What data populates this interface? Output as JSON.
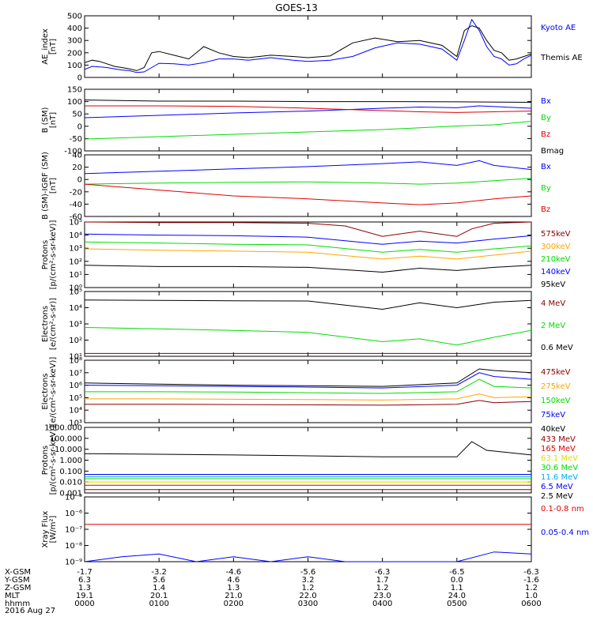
{
  "title": "GOES-13",
  "chart_data": [
    {
      "type": "line",
      "ylabel": [
        "AE_index",
        "[nT]"
      ],
      "ylim": [
        0,
        500
      ],
      "yticks": [
        "0",
        "100",
        "200",
        "300",
        "400",
        "500"
      ],
      "yscale": "linear",
      "series": [
        {
          "name": "Kyoto AE",
          "color": "#0000ff",
          "x": [
            0,
            0.1,
            0.2,
            0.3,
            0.4,
            0.5,
            0.6,
            0.7,
            0.8,
            0.9,
            1.0,
            1.2,
            1.4,
            1.6,
            1.8,
            2.0,
            2.2,
            2.5,
            2.8,
            3.0,
            3.3,
            3.6,
            3.9,
            4.2,
            4.5,
            4.8,
            5.0,
            5.1,
            5.2,
            5.3,
            5.4,
            5.5,
            5.6,
            5.7,
            5.8,
            5.9,
            6.0
          ],
          "values": [
            65,
            90,
            85,
            80,
            70,
            60,
            55,
            40,
            45,
            80,
            115,
            110,
            100,
            120,
            150,
            150,
            140,
            160,
            140,
            130,
            140,
            170,
            240,
            280,
            270,
            230,
            140,
            300,
            470,
            380,
            250,
            170,
            150,
            100,
            110,
            150,
            180
          ]
        },
        {
          "name": "Themis AE",
          "color": "#000000",
          "x": [
            0,
            0.1,
            0.2,
            0.3,
            0.4,
            0.5,
            0.6,
            0.7,
            0.8,
            0.9,
            1.0,
            1.2,
            1.4,
            1.6,
            1.8,
            2.0,
            2.2,
            2.5,
            2.8,
            3.0,
            3.3,
            3.6,
            3.9,
            4.2,
            4.5,
            4.8,
            5.0,
            5.1,
            5.2,
            5.3,
            5.4,
            5.5,
            5.6,
            5.7,
            5.8,
            5.9,
            6.0
          ],
          "values": [
            120,
            140,
            130,
            110,
            90,
            80,
            70,
            55,
            80,
            200,
            210,
            180,
            150,
            250,
            200,
            170,
            160,
            180,
            170,
            160,
            175,
            280,
            320,
            290,
            300,
            260,
            170,
            380,
            420,
            400,
            300,
            220,
            200,
            140,
            150,
            170,
            190
          ]
        }
      ]
    },
    {
      "type": "line",
      "ylabel": [
        "B (SM)",
        "[nT]"
      ],
      "ylim": [
        -110,
        150
      ],
      "yticks": [
        "-100",
        "-50",
        "0",
        "50",
        "100",
        "150"
      ],
      "yscale": "linear",
      "series": [
        {
          "name": "Bx",
          "color": "#0000ff",
          "x": [
            0,
            1,
            2,
            3,
            4,
            4.5,
            5,
            5.3,
            6
          ],
          "values": [
            30,
            40,
            50,
            58,
            70,
            75,
            72,
            80,
            70
          ]
        },
        {
          "name": "By",
          "color": "#00dd00",
          "x": [
            0,
            1,
            2,
            3,
            4,
            5,
            5.5,
            6
          ],
          "values": [
            -60,
            -50,
            -40,
            -30,
            -20,
            -5,
            0,
            15
          ]
        },
        {
          "name": "Bz",
          "color": "#dd0000",
          "x": [
            0,
            1,
            2,
            3,
            4,
            4.5,
            5,
            5.5,
            6
          ],
          "values": [
            80,
            80,
            78,
            70,
            60,
            55,
            52,
            55,
            58
          ]
        },
        {
          "name": "Bmag",
          "color": "#000000",
          "x": [
            0,
            1,
            2,
            3,
            4,
            5,
            6
          ],
          "values": [
            105,
            100,
            100,
            98,
            98,
            97,
            95
          ]
        }
      ]
    },
    {
      "type": "line",
      "ylabel": [
        "B (SM)-IGRF (SM)",
        "[nT]"
      ],
      "ylim": [
        -65,
        40
      ],
      "yticks": [
        "-60",
        "-40",
        "-20",
        "0",
        "20",
        "40"
      ],
      "yscale": "linear",
      "series": [
        {
          "name": "Bx",
          "color": "#0000ff",
          "x": [
            0,
            1,
            2,
            3,
            4,
            4.5,
            5,
            5.3,
            5.5,
            6
          ],
          "values": [
            8,
            12,
            16,
            20,
            25,
            28,
            22,
            30,
            22,
            15
          ]
        },
        {
          "name": "By",
          "color": "#00dd00",
          "x": [
            0,
            1,
            2,
            3,
            4,
            4.5,
            5,
            5.5,
            6
          ],
          "values": [
            -10,
            -8,
            -7,
            -6,
            -8,
            -10,
            -8,
            -4,
            0
          ]
        },
        {
          "name": "Bz",
          "color": "#dd0000",
          "x": [
            0,
            0.5,
            1,
            1.5,
            2,
            3,
            4,
            4.5,
            5,
            5.5,
            6
          ],
          "values": [
            -10,
            -15,
            -20,
            -25,
            -30,
            -35,
            -42,
            -45,
            -42,
            -35,
            -30
          ]
        }
      ]
    },
    {
      "type": "line",
      "ylabel": [
        "Protons",
        "[p/(cm²-s-sr-keV)]"
      ],
      "ylim": [
        1,
        100000
      ],
      "yticks": [
        "10⁰",
        "10¹",
        "10²",
        "10³",
        "10⁴",
        "10⁵"
      ],
      "yscale": "log",
      "series": [
        {
          "name": "575keV",
          "color": "#8b0000",
          "x": [
            0,
            1,
            2,
            3,
            3.5,
            4,
            4.5,
            5,
            5.2,
            5.5,
            6
          ],
          "values": [
            100000,
            90000,
            90000,
            80000,
            50000,
            8000,
            20000,
            8000,
            30000,
            80000,
            100000
          ]
        },
        {
          "name": "300keV",
          "color": "#ffa500",
          "x": [
            0,
            1,
            2,
            3,
            4,
            4.5,
            5,
            5.5,
            6
          ],
          "values": [
            900,
            700,
            600,
            500,
            150,
            250,
            150,
            300,
            600
          ]
        },
        {
          "name": "210keV",
          "color": "#00dd00",
          "x": [
            0,
            1,
            2,
            3,
            4,
            4.5,
            5,
            5.5,
            6
          ],
          "values": [
            3000,
            2500,
            2000,
            1800,
            500,
            800,
            500,
            900,
            1500
          ]
        },
        {
          "name": "140keV",
          "color": "#0000ff",
          "x": [
            0,
            1,
            2,
            3,
            4,
            4.5,
            5,
            5.5,
            6
          ],
          "values": [
            12000,
            10000,
            9000,
            7000,
            2000,
            3500,
            2500,
            5000,
            9000
          ]
        },
        {
          "name": "95keV",
          "color": "#000000",
          "x": [
            0,
            1,
            2,
            3,
            4,
            4.5,
            5,
            5.5,
            6
          ],
          "values": [
            50,
            40,
            40,
            35,
            15,
            30,
            20,
            35,
            50
          ]
        }
      ]
    },
    {
      "type": "line",
      "ylabel": [
        "Electrons",
        "[e/(cm²-s-sr)]"
      ],
      "ylim": [
        10,
        100000
      ],
      "yticks": [
        "10¹",
        "10²",
        "10³",
        "10⁴",
        "10⁵"
      ],
      "yscale": "log",
      "series": [
        {
          "name": "4 MeV",
          "color": "#8b0000",
          "x": [
            0,
            1,
            2,
            3,
            4,
            5,
            6
          ],
          "values": [
            15,
            15,
            15,
            15,
            15,
            15,
            15
          ]
        },
        {
          "name": "2 MeV",
          "color": "#00dd00",
          "x": [
            0,
            1,
            2,
            3,
            4,
            4.5,
            5,
            5.5,
            6
          ],
          "values": [
            600,
            500,
            400,
            300,
            80,
            120,
            50,
            150,
            400
          ]
        },
        {
          "name": "0.6 MeV",
          "color": "#000000",
          "x": [
            0,
            1,
            2,
            3,
            4,
            4.5,
            5,
            5.5,
            6
          ],
          "values": [
            30000,
            28000,
            27000,
            26000,
            8000,
            20000,
            10000,
            22000,
            28000
          ]
        }
      ]
    },
    {
      "type": "line",
      "ylabel": [
        "Electrons",
        "[e/(cm²-s-sr-keV)]"
      ],
      "ylim": [
        1000,
        100000000
      ],
      "yticks": [
        "10³",
        "10⁴",
        "10⁵",
        "10⁶",
        "10⁷",
        "10⁸"
      ],
      "yscale": "log",
      "series": [
        {
          "name": "475keV",
          "color": "#8b0000",
          "x": [
            0,
            1,
            2,
            3,
            4,
            5,
            5.3,
            5.5,
            6
          ],
          "values": [
            30000,
            30000,
            28000,
            27000,
            25000,
            30000,
            60000,
            40000,
            50000
          ]
        },
        {
          "name": "275keV",
          "color": "#ffa500",
          "x": [
            0,
            1,
            2,
            3,
            4,
            5,
            5.3,
            5.5,
            6
          ],
          "values": [
            80000,
            80000,
            75000,
            70000,
            65000,
            80000,
            200000,
            100000,
            120000
          ]
        },
        {
          "name": "150keV",
          "color": "#00dd00",
          "x": [
            0,
            1,
            2,
            3,
            4,
            5,
            5.3,
            5.5,
            6
          ],
          "values": [
            300000,
            300000,
            280000,
            250000,
            220000,
            300000,
            3000000,
            800000,
            600000
          ]
        },
        {
          "name": "75keV",
          "color": "#0000ff",
          "x": [
            0,
            1,
            2,
            3,
            4,
            5,
            5.3,
            5.5,
            6
          ],
          "values": [
            1000000,
            900000,
            800000,
            700000,
            600000,
            1000000,
            10000000,
            5000000,
            3000000
          ]
        },
        {
          "name": "40keV",
          "color": "#000000",
          "x": [
            0,
            1,
            2,
            3,
            4,
            5,
            5.3,
            5.5,
            6
          ],
          "values": [
            1500000,
            1200000,
            1000000,
            900000,
            800000,
            1500000,
            20000000,
            15000000,
            10000000
          ]
        }
      ]
    },
    {
      "type": "line",
      "ylabel": [
        "Protons",
        "[p/(cm²-s-sr-keV)]"
      ],
      "ylim": [
        0.001,
        1000
      ],
      "yticks": [
        "0.001",
        "0.010",
        "0.100",
        "1.000",
        "10.000",
        "100.000",
        "1000.000"
      ],
      "yscale": "log",
      "series": [
        {
          "name": "433 MeV",
          "color": "#8b0000",
          "x": [
            0,
            3,
            6
          ],
          "values": [
            0.002,
            0.002,
            0.002
          ]
        },
        {
          "name": "165 MeV",
          "color": "#dd0000",
          "x": [
            0,
            3,
            6
          ],
          "values": [
            0.005,
            0.005,
            0.005
          ]
        },
        {
          "name": "63.1 MeV",
          "color": "#dddd00",
          "x": [
            0,
            3,
            6
          ],
          "values": [
            0.01,
            0.01,
            0.01
          ]
        },
        {
          "name": "30.6 MeV",
          "color": "#00dd00",
          "x": [
            0,
            3,
            6
          ],
          "values": [
            0.02,
            0.02,
            0.02
          ]
        },
        {
          "name": "11.6 MeV",
          "color": "#00aaff",
          "x": [
            0,
            3,
            6
          ],
          "values": [
            0.03,
            0.03,
            0.03
          ]
        },
        {
          "name": "6.5 MeV",
          "color": "#0000ff",
          "x": [
            0,
            3,
            6
          ],
          "values": [
            0.05,
            0.05,
            0.05
          ]
        },
        {
          "name": "2.5 MeV",
          "color": "#000000",
          "x": [
            0,
            1,
            2,
            3,
            4,
            5,
            5.2,
            5.4,
            6
          ],
          "values": [
            4,
            3.5,
            3,
            2.5,
            2,
            2,
            50,
            8,
            3
          ]
        }
      ]
    },
    {
      "type": "line",
      "ylabel": [
        "Xray Flux",
        "[W/m²]"
      ],
      "ylim": [
        1e-09,
        1e-05
      ],
      "yticks": [
        "10⁻⁹",
        "10⁻⁸",
        "10⁻⁷",
        "10⁻⁶",
        "10⁻⁵"
      ],
      "yscale": "log",
      "series": [
        {
          "name": "0.1-0.8 nm",
          "color": "#dd0000",
          "x": [
            0,
            3,
            6
          ],
          "values": [
            2e-07,
            2e-07,
            2e-07
          ]
        },
        {
          "name": "0.05-0.4 nm",
          "color": "#0000ff",
          "x": [
            0,
            0.5,
            1,
            1.5,
            2,
            2.5,
            3,
            3.5,
            4,
            4.5,
            5,
            5.5,
            6
          ],
          "values": [
            1e-09,
            2e-09,
            3e-09,
            1e-09,
            2e-09,
            1e-09,
            2e-09,
            1e-09,
            1e-09,
            1e-09,
            1e-09,
            4e-09,
            3e-09
          ]
        }
      ]
    }
  ],
  "ephemeris": {
    "labels": [
      "X-GSM",
      "Y-GSM",
      "Z-GSM",
      "MLT",
      "hhmm",
      "2016 Aug 27"
    ],
    "columns": [
      {
        "x": "-1.7",
        "y": "6.3",
        "z": "1.3",
        "mlt": "19.1",
        "hhmm": "0000"
      },
      {
        "x": "-3.2",
        "y": "5.6",
        "z": "1.4",
        "mlt": "20.1",
        "hhmm": "0100"
      },
      {
        "x": "-4.6",
        "y": "4.6",
        "z": "1.3",
        "mlt": "21.0",
        "hhmm": "0200"
      },
      {
        "x": "-5.6",
        "y": "3.2",
        "z": "1.2",
        "mlt": "22.0",
        "hhmm": "0300"
      },
      {
        "x": "-6.3",
        "y": "1.7",
        "z": "1.2",
        "mlt": "23.0",
        "hhmm": "0400"
      },
      {
        "x": "-6.5",
        "y": "0.0",
        "z": "1.1",
        "mlt": "24.0",
        "hhmm": "0500"
      },
      {
        "x": "-6.3",
        "y": "-1.6",
        "z": "1.2",
        "mlt": "1.0",
        "hhmm": "0600"
      }
    ]
  }
}
